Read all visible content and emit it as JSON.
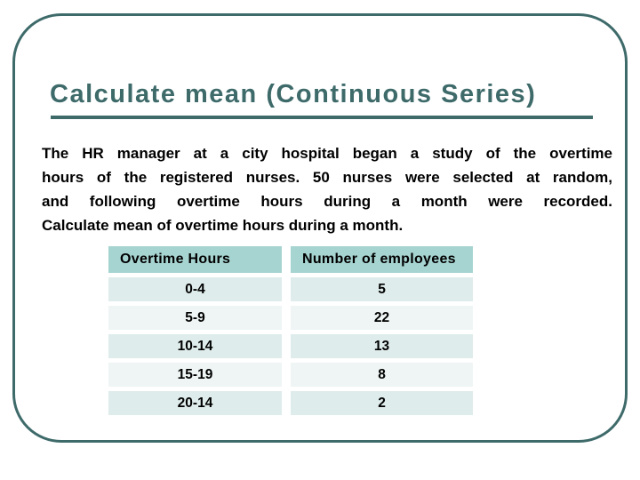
{
  "slide": {
    "title": "Calculate mean (Continuous Series)",
    "body_lines": [
      "The HR manager at a city hospital began a study of the overtime",
      "hours of the registered nurses. 50 nurses were selected at random,",
      "and following overtime hours during a month were recorded.",
      "Calculate mean of overtime hours during a month."
    ],
    "table": {
      "headers": [
        "Overtime Hours",
        "Number of employees"
      ],
      "rows": [
        [
          "0-4",
          "5"
        ],
        [
          "5-9",
          "22"
        ],
        [
          "10-14",
          "13"
        ],
        [
          "15-19",
          "8"
        ],
        [
          "20-14",
          "2"
        ]
      ]
    },
    "colors": {
      "accent_teal": "#3e6a6a",
      "table_header_bg": "#a6d4d1",
      "table_row_dark": "#deeceb",
      "table_row_light": "#eef5f4",
      "body_text": "#000000",
      "background": "#ffffff"
    }
  }
}
